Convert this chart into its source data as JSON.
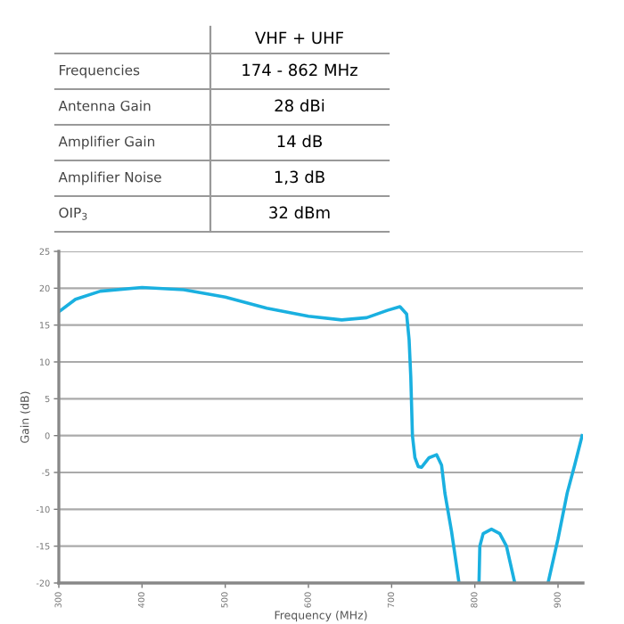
{
  "chart_data": {
    "type": "line",
    "xlabel": "Frequency (MHz)",
    "ylabel": "Gain (dB)",
    "annotations": [
      "VHF + UHF",
      "Frequencies",
      "174 - 862 MHz",
      "Antenna Gain",
      "28 dBi",
      "Amplifier Gain",
      "14 dB",
      "Amplifier Noise",
      "1,3 dB",
      "OIP$_{3}$",
      "32 dBm"
    ],
    "xlim": [
      300,
      930
    ],
    "xticks": [
      300,
      400,
      500,
      600,
      700,
      800,
      900
    ],
    "ylim": [
      -20,
      25
    ],
    "yticks": [
      -20,
      -15,
      -10,
      -5,
      0,
      5,
      10,
      15,
      20,
      25
    ],
    "grid": "y",
    "marker": "none",
    "line_style": "solid",
    "series": [
      {
        "color": "#1ab0e0",
        "x": [
          300,
          320,
          350,
          400,
          450,
          500,
          550,
          600,
          640,
          670,
          695,
          710,
          718,
          721,
          723,
          725,
          728,
          732,
          736,
          745,
          754,
          760,
          764,
          772,
          781,
          790,
          805,
          806,
          810,
          820,
          830,
          838,
          848,
          860,
          888,
          900,
          911,
          920,
          929
        ],
        "values": [
          16.8,
          18.5,
          19.6,
          20.1,
          19.8,
          18.8,
          17.3,
          16.2,
          15.7,
          16.0,
          17.0,
          17.5,
          16.5,
          13,
          8,
          0,
          -3,
          -4.2,
          -4.3,
          -3,
          -2.6,
          -4,
          -7.8,
          -13,
          -20,
          null,
          -20,
          -15,
          -13.3,
          -12.7,
          -13.3,
          -15,
          -20,
          null,
          -20,
          -14,
          -7.8,
          -4,
          0
        ]
      }
    ]
  }
}
